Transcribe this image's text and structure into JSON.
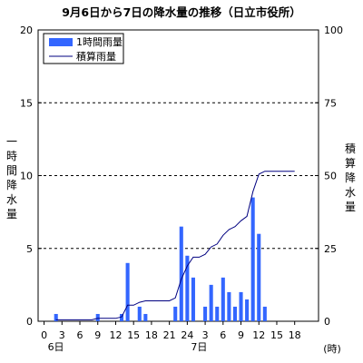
{
  "chart_data": {
    "type": "bar+line",
    "title": "9月6日から7日の降水量の推移（日立市役所）",
    "y_left_label": "一時間降水量",
    "y_right_label": "積算降水量",
    "x_unit_label": "(時)",
    "x_day_labels": [
      {
        "hour": 0,
        "label": "6日"
      },
      {
        "hour": 24,
        "label": "7日"
      }
    ],
    "x_ticks": [
      {
        "hour": 0,
        "label": "0"
      },
      {
        "hour": 3,
        "label": "3"
      },
      {
        "hour": 6,
        "label": "6"
      },
      {
        "hour": 9,
        "label": "9"
      },
      {
        "hour": 12,
        "label": "12"
      },
      {
        "hour": 15,
        "label": "15"
      },
      {
        "hour": 18,
        "label": "18"
      },
      {
        "hour": 21,
        "label": "21"
      },
      {
        "hour": 24,
        "label": "24"
      },
      {
        "hour": 27,
        "label": "3"
      },
      {
        "hour": 30,
        "label": "6"
      },
      {
        "hour": 33,
        "label": "9"
      },
      {
        "hour": 36,
        "label": "12"
      },
      {
        "hour": 39,
        "label": "15"
      },
      {
        "hour": 42,
        "label": "18"
      }
    ],
    "y_left_range": [
      0,
      20
    ],
    "y_left_ticks": [
      0,
      5,
      10,
      15,
      20
    ],
    "y_right_range": [
      0,
      100
    ],
    "y_right_ticks": [
      0,
      25,
      50,
      75,
      100
    ],
    "gridlines_dashed_at_left": [
      5,
      10,
      15
    ],
    "legend_position": "top-left",
    "colors": {
      "bar": "#3366ff",
      "line": "#000080"
    },
    "hours": [
      2,
      3,
      4,
      5,
      6,
      7,
      8,
      9,
      10,
      11,
      12,
      13,
      14,
      15,
      16,
      17,
      18,
      19,
      20,
      21,
      22,
      23,
      24,
      25,
      26,
      27,
      28,
      29,
      30,
      31,
      32,
      33,
      34,
      35,
      36,
      37,
      38,
      39,
      40,
      41,
      42
    ],
    "series": [
      {
        "name": "1時間雨量",
        "kind": "bar",
        "axis": "left",
        "values": [
          0.5,
          0,
          0,
          0,
          0,
          0,
          0,
          0.5,
          0,
          0,
          0,
          0.5,
          4,
          0,
          1,
          0.5,
          0,
          0,
          0,
          0,
          1,
          6.5,
          4.5,
          3,
          0,
          1,
          2.5,
          1,
          3,
          2,
          1,
          2,
          1.5,
          8.5,
          6,
          1,
          0,
          0,
          0,
          0,
          0
        ]
      },
      {
        "name": "積算雨量",
        "kind": "line",
        "axis": "right",
        "values": [
          0.5,
          0.5,
          0.5,
          0.5,
          0.5,
          0.5,
          0.5,
          1,
          1,
          1,
          1,
          1.5,
          5.5,
          5.5,
          6.5,
          7,
          7,
          7,
          7,
          7,
          8,
          14.5,
          19,
          22,
          22,
          23,
          25.5,
          26.5,
          29.5,
          31.5,
          32.5,
          34.5,
          36,
          44.5,
          50.5,
          51.5,
          51.5,
          51.5,
          51.5,
          51.5,
          51.5
        ]
      }
    ]
  }
}
